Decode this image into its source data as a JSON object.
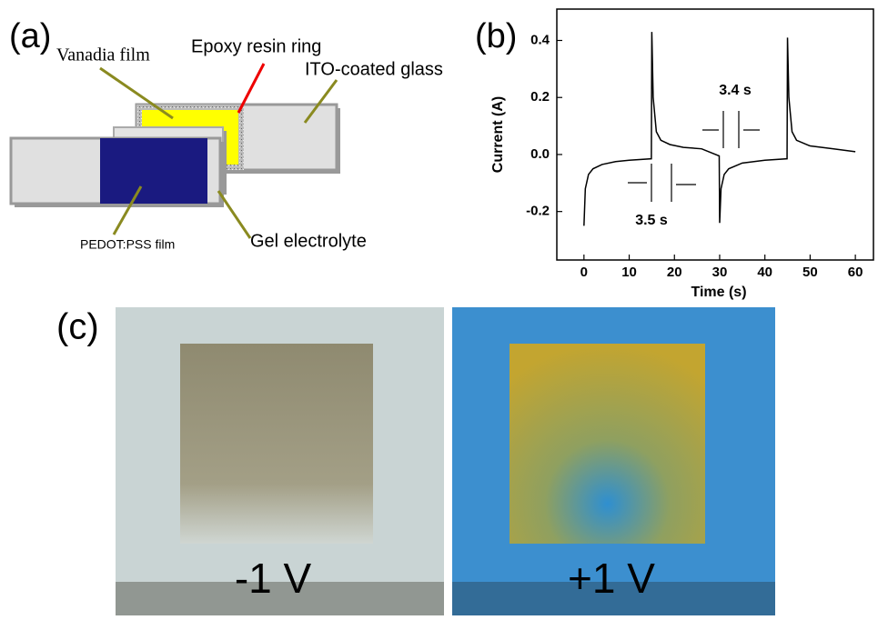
{
  "panel_a": {
    "label": "(a)",
    "annotations": [
      "Vanadia film",
      "Epoxy resin ring",
      "ITO-coated glass",
      "PEDOT:PSS film",
      "Gel electrolyte"
    ]
  },
  "chart_data": {
    "type": "line",
    "label": "(b)",
    "x_label": "Time (s)",
    "y_label": "Current (A)",
    "x": [
      0,
      0.3,
      1,
      2,
      4,
      7,
      10,
      14.9,
      15,
      15.3,
      16,
      17,
      19,
      22,
      26,
      29.9,
      30,
      30.3,
      31,
      32,
      35,
      40,
      44.9,
      45,
      45.3,
      46,
      47,
      50,
      55,
      60
    ],
    "values": [
      -0.25,
      -0.12,
      -0.07,
      -0.05,
      -0.035,
      -0.025,
      -0.02,
      -0.015,
      0.43,
      0.2,
      0.08,
      0.05,
      0.035,
      0.025,
      0.02,
      -0.005,
      -0.24,
      -0.12,
      -0.07,
      -0.05,
      -0.03,
      -0.02,
      -0.015,
      0.41,
      0.2,
      0.08,
      0.05,
      0.03,
      0.02,
      0.01
    ],
    "color": "#000000",
    "xlim": [
      -6,
      64
    ],
    "xticks": [
      0,
      10,
      20,
      30,
      40,
      50,
      60
    ],
    "ylim": [
      -0.37,
      0.51
    ],
    "yticks": [
      -0.2,
      {
        "value": 0,
        "label": "0.0"
      },
      0.2,
      0.4
    ],
    "annotations": [
      "3.4 s",
      "3.5 s"
    ]
  },
  "panel_c": {
    "label": "(c)",
    "photos": [
      {
        "label": "-1 V"
      },
      {
        "label": "+1 V"
      }
    ]
  }
}
